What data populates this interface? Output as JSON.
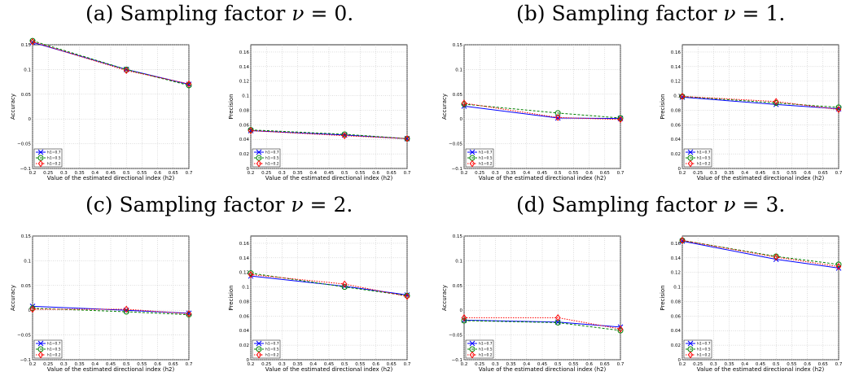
{
  "captions": [
    {
      "prefix": "(a) Sampling factor ",
      "symbol": "ν",
      "suffix": " = 0."
    },
    {
      "prefix": "(b) Sampling factor ",
      "symbol": "ν",
      "suffix": " = 1."
    },
    {
      "prefix": "(c) Sampling factor ",
      "symbol": "ν",
      "suffix": " = 2."
    },
    {
      "prefix": "(d) Sampling factor ",
      "symbol": "ν",
      "suffix": " = 3."
    }
  ],
  "colors": {
    "h1_0.7": "#0000ff",
    "h1_0.5": "#008000",
    "h1_0.2": "#ff0000",
    "grid": "#bbbbbb"
  },
  "chart_data": [
    {
      "type": "line",
      "xlabel": "Value of the estimated directional index (h2)",
      "ylabel": "Accuracy",
      "xlim": [
        0.2,
        0.7
      ],
      "ylim": [
        -0.1,
        0.15
      ],
      "xticks": [
        "0.2",
        "0.25",
        "0.3",
        "0.35",
        "0.4",
        "0.45",
        "0.5",
        "0.55",
        "0.6",
        "0.65",
        "0.7"
      ],
      "yticks": [
        "−0.1",
        "−0.05",
        "0",
        "0.05",
        "0.1",
        "0.15"
      ],
      "legend": "bottom-left",
      "grid": true,
      "x": [
        0.2,
        0.5,
        0.7
      ],
      "series": [
        {
          "name": "h1=0.7",
          "values": [
            0.155,
            0.1,
            0.07
          ]
        },
        {
          "name": "h1=0.5",
          "values": [
            0.158,
            0.1,
            0.068
          ]
        },
        {
          "name": "h1=0.2",
          "values": [
            0.156,
            0.098,
            0.071
          ]
        }
      ]
    },
    {
      "type": "line",
      "xlabel": "Value of the estimated directional index (h2)",
      "ylabel": "Precision",
      "xlim": [
        0.2,
        0.7
      ],
      "ylim": [
        0,
        0.17
      ],
      "xticks": [
        "0.2",
        "0.25",
        "0.3",
        "0.35",
        "0.4",
        "0.45",
        "0.5",
        "0.55",
        "0.6",
        "0.65",
        "0.7"
      ],
      "yticks": [
        "0",
        "0.02",
        "0.04",
        "0.06",
        "0.08",
        "0.1",
        "0.12",
        "0.14",
        "0.16"
      ],
      "legend": "bottom-left",
      "grid": true,
      "x": [
        0.2,
        0.5,
        0.7
      ],
      "series": [
        {
          "name": "h1=0.7",
          "values": [
            0.052,
            0.046,
            0.041
          ]
        },
        {
          "name": "h1=0.5",
          "values": [
            0.053,
            0.047,
            0.041
          ]
        },
        {
          "name": "h1=0.2",
          "values": [
            0.052,
            0.045,
            0.041
          ]
        }
      ]
    },
    {
      "type": "line",
      "xlabel": "Value of the estimated directional index (h2)",
      "ylabel": "Accuracy",
      "xlim": [
        0.2,
        0.7
      ],
      "ylim": [
        -0.1,
        0.15
      ],
      "xticks": [
        "0.2",
        "0.25",
        "0.3",
        "0.35",
        "0.4",
        "0.45",
        "0.5",
        "0.55",
        "0.6",
        "0.65",
        "0.7"
      ],
      "yticks": [
        "−0.1",
        "−0.05",
        "0",
        "0.05",
        "0.1",
        "0.15"
      ],
      "legend": "bottom-left",
      "grid": true,
      "x": [
        0.2,
        0.5,
        0.7
      ],
      "series": [
        {
          "name": "h1=0.7",
          "values": [
            0.026,
            0.002,
            0.001
          ]
        },
        {
          "name": "h1=0.5",
          "values": [
            0.03,
            0.012,
            0.002
          ]
        },
        {
          "name": "h1=0.2",
          "values": [
            0.032,
            0.003,
            -0.001
          ]
        }
      ]
    },
    {
      "type": "line",
      "xlabel": "Value of the estimated directional index (h2)",
      "ylabel": "Precision",
      "xlim": [
        0.2,
        0.7
      ],
      "ylim": [
        0,
        0.17
      ],
      "xticks": [
        "0.2",
        "0.25",
        "0.3",
        "0.35",
        "0.4",
        "0.45",
        "0.5",
        "0.55",
        "0.6",
        "0.65",
        "0.7"
      ],
      "yticks": [
        "0",
        "0.02",
        "0.04",
        "0.06",
        "0.08",
        "0.1",
        "0.12",
        "0.14",
        "0.16"
      ],
      "legend": "bottom-left",
      "grid": true,
      "x": [
        0.2,
        0.5,
        0.7
      ],
      "series": [
        {
          "name": "h1=0.7",
          "values": [
            0.098,
            0.088,
            0.082
          ]
        },
        {
          "name": "h1=0.5",
          "values": [
            0.099,
            0.09,
            0.084
          ]
        },
        {
          "name": "h1=0.2",
          "values": [
            0.099,
            0.092,
            0.081
          ]
        }
      ]
    },
    {
      "type": "line",
      "xlabel": "Value of the estimated directional index (h2)",
      "ylabel": "Accuracy",
      "xlim": [
        0.2,
        0.7
      ],
      "ylim": [
        -0.1,
        0.15
      ],
      "xticks": [
        "0.2",
        "0.25",
        "0.3",
        "0.35",
        "0.4",
        "0.45",
        "0.5",
        "0.55",
        "0.6",
        "0.65",
        "0.7"
      ],
      "yticks": [
        "−0.1",
        "−0.05",
        "0",
        "0.05",
        "0.1",
        "0.15"
      ],
      "legend": "bottom-left",
      "grid": true,
      "x": [
        0.2,
        0.5,
        0.7
      ],
      "series": [
        {
          "name": "h1=0.7",
          "values": [
            0.008,
            0.0,
            -0.006
          ]
        },
        {
          "name": "h1=0.5",
          "values": [
            0.004,
            -0.003,
            -0.009
          ]
        },
        {
          "name": "h1=0.2",
          "values": [
            0.002,
            0.002,
            -0.007
          ]
        }
      ]
    },
    {
      "type": "line",
      "xlabel": "Value of the estimated directional index (h2)",
      "ylabel": "Precision",
      "xlim": [
        0.2,
        0.7
      ],
      "ylim": [
        0,
        0.17
      ],
      "xticks": [
        "0.2",
        "0.25",
        "0.3",
        "0.35",
        "0.4",
        "0.45",
        "0.5",
        "0.55",
        "0.6",
        "0.65",
        "0.7"
      ],
      "yticks": [
        "0",
        "0.02",
        "0.04",
        "0.06",
        "0.08",
        "0.1",
        "0.12",
        "0.14",
        "0.16"
      ],
      "legend": "bottom-left",
      "grid": true,
      "x": [
        0.2,
        0.5,
        0.7
      ],
      "series": [
        {
          "name": "h1=0.7",
          "values": [
            0.115,
            0.101,
            0.089
          ]
        },
        {
          "name": "h1=0.5",
          "values": [
            0.119,
            0.1,
            0.088
          ]
        },
        {
          "name": "h1=0.2",
          "values": [
            0.117,
            0.104,
            0.087
          ]
        }
      ]
    },
    {
      "type": "line",
      "xlabel": "Value of the estimated directional index (h2)",
      "ylabel": "Accuracy",
      "xlim": [
        0.2,
        0.7
      ],
      "ylim": [
        -0.1,
        0.15
      ],
      "xticks": [
        "0.2",
        "0.25",
        "0.3",
        "0.35",
        "0.4",
        "0.45",
        "0.5",
        "0.55",
        "0.6",
        "0.65",
        "0.7"
      ],
      "yticks": [
        "−0.1",
        "−0.05",
        "0",
        "0.05",
        "0.1",
        "0.15"
      ],
      "legend": "bottom-left",
      "grid": true,
      "x": [
        0.2,
        0.5,
        0.7
      ],
      "series": [
        {
          "name": "h1=0.7",
          "values": [
            -0.02,
            -0.024,
            -0.034
          ]
        },
        {
          "name": "h1=0.5",
          "values": [
            -0.021,
            -0.025,
            -0.041
          ]
        },
        {
          "name": "h1=0.2",
          "values": [
            -0.015,
            -0.015,
            -0.038
          ]
        }
      ]
    },
    {
      "type": "line",
      "xlabel": "Value of the estimated directional index (h2)",
      "ylabel": "Precision",
      "xlim": [
        0.2,
        0.7
      ],
      "ylim": [
        0,
        0.17
      ],
      "xticks": [
        "0.2",
        "0.25",
        "0.3",
        "0.35",
        "0.4",
        "0.45",
        "0.5",
        "0.55",
        "0.6",
        "0.65",
        "0.7"
      ],
      "yticks": [
        "0",
        "0.02",
        "0.04",
        "0.06",
        "0.08",
        "0.1",
        "0.12",
        "0.14",
        "0.16"
      ],
      "legend": "bottom-left",
      "grid": true,
      "x": [
        0.2,
        0.5,
        0.7
      ],
      "series": [
        {
          "name": "h1=0.7",
          "values": [
            0.163,
            0.138,
            0.126
          ]
        },
        {
          "name": "h1=0.5",
          "values": [
            0.164,
            0.142,
            0.131
          ]
        },
        {
          "name": "h1=0.2",
          "values": [
            0.164,
            0.141,
            0.128
          ]
        }
      ]
    }
  ]
}
